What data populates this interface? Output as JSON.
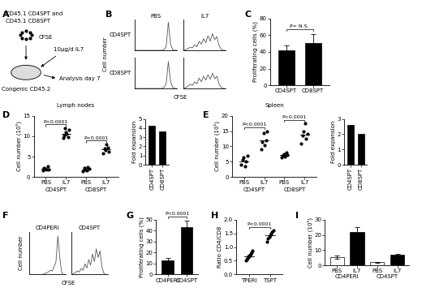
{
  "chart_data": [
    {
      "panel": "A",
      "type": "diagram",
      "texts": [
        "CD45.1 CD4SPT and",
        "CD45.1 CD8SPT",
        "CFSE",
        "10µg/d IL7",
        "Analysis day 7",
        "Congenic CD45.2"
      ]
    },
    {
      "panel": "B",
      "type": "histogram_grid",
      "row_labels": [
        "CD4SPT",
        "CD8SPT"
      ],
      "col_labels": [
        "PBS",
        "IL7"
      ],
      "xlabel": "CFSE",
      "ylabel": "Cell number",
      "tick_labels": false,
      "color": "#555555",
      "x": [
        0,
        1,
        2,
        3,
        4,
        5,
        6,
        7,
        8,
        9,
        10,
        11,
        12,
        13,
        14,
        15,
        16,
        17,
        18,
        19
      ],
      "xlim": [
        0,
        19
      ],
      "ylim": [
        0,
        100
      ],
      "curves": [
        [
          0,
          0,
          0,
          0,
          0,
          0,
          0,
          0,
          0,
          0,
          0,
          0,
          0,
          2,
          12,
          92,
          20,
          2,
          0,
          0
        ],
        [
          0,
          2,
          6,
          10,
          8,
          18,
          12,
          30,
          20,
          38,
          25,
          48,
          30,
          55,
          35,
          45,
          15,
          3,
          0,
          0
        ],
        [
          0,
          0,
          0,
          0,
          0,
          0,
          0,
          0,
          0,
          0,
          0,
          0,
          0,
          3,
          15,
          88,
          22,
          3,
          0,
          0
        ],
        [
          0,
          3,
          8,
          14,
          10,
          22,
          15,
          34,
          22,
          40,
          28,
          45,
          30,
          50,
          32,
          40,
          14,
          3,
          0,
          0
        ]
      ]
    },
    {
      "panel": "C",
      "type": "bar",
      "categories": [
        "CD4SPT",
        "CD8SPT"
      ],
      "values": [
        42,
        51
      ],
      "errors": [
        6,
        10
      ],
      "color": "#000000",
      "ylabel": "Proliferating cells (%)",
      "ylim": [
        0,
        80
      ],
      "yticks": [
        0,
        20,
        40,
        60,
        80
      ],
      "annotations": [
        "P= N.S."
      ]
    },
    {
      "panel": "D",
      "type": "dot",
      "title": "Lymph nodes",
      "categories": [
        "PBS",
        "IL7",
        "PBS",
        "IL7"
      ],
      "groups": [
        "CD4SPT",
        "CD8SPT"
      ],
      "ylabel": "Cell number (10⁵)",
      "ylim": [
        0,
        15
      ],
      "yticks": [
        0,
        5,
        10,
        15
      ],
      "points": [
        [
          1.6,
          2.3,
          2.0,
          1.8,
          2.6,
          1.9
        ],
        [
          9.5,
          10.2,
          12.0,
          11.0,
          10.5,
          9.8,
          11.5
        ],
        [
          1.5,
          2.2,
          1.9,
          1.7,
          2.4,
          2.0
        ],
        [
          5.8,
          7.0,
          6.5,
          8.0,
          7.2,
          6.2
        ]
      ],
      "means": [
        2.0,
        10.6,
        1.9,
        6.8
      ],
      "annotations": [
        "P<0.0001",
        "P<0.0001"
      ],
      "inset": {
        "type": "bar",
        "categories": [
          "CD4SPT",
          "CD8SPT"
        ],
        "values": [
          4.3,
          3.6
        ],
        "color": "#000000",
        "ylabel": "Fold expansion",
        "ylim": [
          0,
          5
        ],
        "yticks": [
          0,
          1,
          2,
          3,
          4,
          5
        ]
      }
    },
    {
      "panel": "E",
      "type": "dot",
      "title": "Spleen",
      "categories": [
        "PBS",
        "IL7",
        "PBS",
        "IL7"
      ],
      "groups": [
        "CD4SPT",
        "CD8SPT"
      ],
      "ylabel": "Cell number (10⁵)",
      "ylim": [
        0,
        20
      ],
      "yticks": [
        0,
        5,
        10,
        15,
        20
      ],
      "points": [
        [
          4.0,
          5.5,
          6.5,
          3.5,
          5.0,
          7.0
        ],
        [
          9.0,
          11.5,
          14.5,
          10.5,
          12.0,
          15.0
        ],
        [
          6.5,
          7.0,
          7.5,
          6.8,
          8.0,
          7.2
        ],
        [
          11.0,
          13.5,
          15.0,
          17.5,
          12.5,
          14.0
        ]
      ],
      "means": [
        5.2,
        12.1,
        7.2,
        13.9
      ],
      "annotations": [
        "P<0.0001",
        "P<0.0001"
      ],
      "inset": {
        "type": "bar",
        "categories": [
          "CD4SPT",
          "CD8SPT"
        ],
        "values": [
          2.6,
          2.0
        ],
        "color": "#000000",
        "ylabel": "Fold expansion",
        "ylim": [
          0,
          3
        ],
        "yticks": [
          0,
          1,
          2,
          3
        ]
      }
    },
    {
      "panel": "F",
      "type": "histogram_grid",
      "col_labels": [
        "CD4PERI",
        "CD4SPT"
      ],
      "xlabel": "CFSE",
      "ylabel": "Cell number",
      "tick_labels": false,
      "color": "#555555",
      "x": [
        0,
        1,
        2,
        3,
        4,
        5,
        6,
        7,
        8,
        9,
        10,
        11,
        12,
        13,
        14,
        15,
        16,
        17,
        18,
        19
      ],
      "xlim": [
        0,
        19
      ],
      "ylim": [
        0,
        100
      ],
      "curves": [
        [
          0,
          0,
          0,
          0,
          0,
          0,
          0,
          0,
          2,
          4,
          6,
          10,
          8,
          18,
          30,
          90,
          40,
          5,
          0,
          0
        ],
        [
          0,
          2,
          5,
          8,
          6,
          14,
          10,
          25,
          15,
          35,
          22,
          48,
          30,
          60,
          40,
          55,
          18,
          3,
          0,
          0
        ]
      ]
    },
    {
      "panel": "G",
      "type": "bar",
      "categories": [
        "CD4PERI",
        "CD4SPT"
      ],
      "values": [
        13,
        43
      ],
      "errors": [
        2,
        6
      ],
      "color": "#000000",
      "ylabel": "Proliferating cells (%)",
      "ylim": [
        0,
        50
      ],
      "yticks": [
        0,
        10,
        20,
        30,
        40,
        50
      ],
      "annotations": [
        "P<0.0001"
      ]
    },
    {
      "panel": "H",
      "type": "dot",
      "categories": [
        "TPERI",
        "TSPT"
      ],
      "ylabel": "Ratio CD4/CD8",
      "ylim": [
        0,
        2
      ],
      "yticks": [
        {
          "value": 0,
          "label": "0.0"
        },
        {
          "value": 0.5,
          "label": "0.5"
        },
        {
          "value": 1,
          "label": "1.0"
        },
        {
          "value": 1.5,
          "label": "1.5"
        },
        {
          "value": 2,
          "label": "2.0"
        }
      ],
      "points": [
        [
          0.5,
          0.55,
          0.6,
          0.62,
          0.65,
          0.68,
          0.7,
          0.75,
          0.8,
          0.88
        ],
        [
          1.2,
          1.3,
          1.38,
          1.42,
          1.5,
          1.55,
          1.62
        ]
      ],
      "means": [
        0.67,
        1.42
      ],
      "annotations": [
        "P<0.0001"
      ]
    },
    {
      "panel": "I",
      "type": "grouped_bar",
      "categories": [
        "PBS",
        "IL7",
        "PBS",
        "IL7"
      ],
      "groups": [
        "CD4PERI",
        "CD4SPT"
      ],
      "values": [
        5.5,
        22,
        2,
        7
      ],
      "errors": [
        1,
        3,
        0.3,
        0.5
      ],
      "colors": [
        "#ffffff",
        "#000000",
        "#ffffff",
        "#000000"
      ],
      "ylabel": "Cell number (10⁵)",
      "ylim": [
        0,
        30
      ],
      "yticks": [
        0,
        10,
        20,
        30
      ]
    }
  ]
}
